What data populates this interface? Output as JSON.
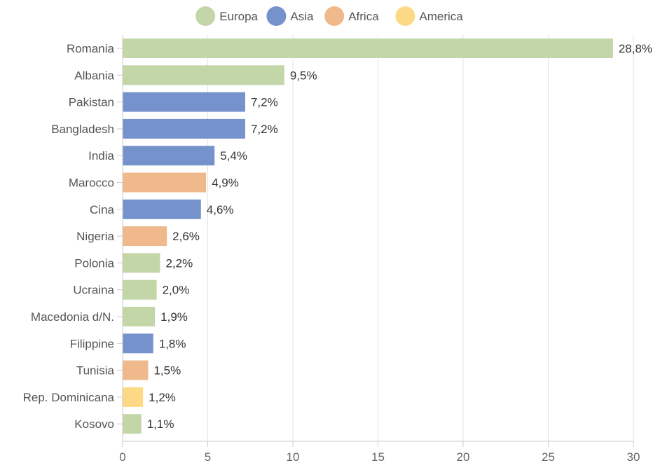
{
  "chart_data": {
    "type": "bar",
    "orientation": "horizontal",
    "legend": {
      "position": "top",
      "items": [
        {
          "label": "Europa",
          "color": "#c2d6a8"
        },
        {
          "label": "Asia",
          "color": "#7592cc"
        },
        {
          "label": "Africa",
          "color": "#efb98c"
        },
        {
          "label": "America",
          "color": "#fdd985"
        }
      ]
    },
    "categories": [
      "Romania",
      "Albania",
      "Pakistan",
      "Bangladesh",
      "India",
      "Marocco",
      "Cina",
      "Nigeria",
      "Polonia",
      "Ucraina",
      "Macedonia d/N.",
      "Filippine",
      "Tunisia",
      "Rep. Dominicana",
      "Kosovo"
    ],
    "values": [
      28.8,
      9.5,
      7.2,
      7.2,
      5.4,
      4.9,
      4.6,
      2.6,
      2.2,
      2.0,
      1.9,
      1.8,
      1.5,
      1.2,
      1.1
    ],
    "value_labels": [
      "28,8%",
      "9,5%",
      "7,2%",
      "7,2%",
      "5,4%",
      "4,9%",
      "4,6%",
      "2,6%",
      "2,2%",
      "2,0%",
      "1,9%",
      "1,8%",
      "1,5%",
      "1,2%",
      "1,1%"
    ],
    "groups": [
      "Europa",
      "Europa",
      "Asia",
      "Asia",
      "Asia",
      "Africa",
      "Asia",
      "Africa",
      "Europa",
      "Europa",
      "Europa",
      "Asia",
      "Africa",
      "America",
      "Europa"
    ],
    "xlim": [
      0,
      30
    ],
    "xticks": [
      0,
      5,
      10,
      15,
      20,
      25,
      30
    ],
    "grid": true,
    "title": "",
    "xlabel": "",
    "ylabel": ""
  }
}
